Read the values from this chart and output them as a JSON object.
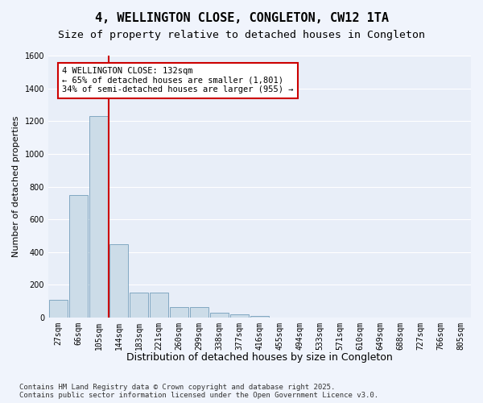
{
  "title": "4, WELLINGTON CLOSE, CONGLETON, CW12 1TA",
  "subtitle": "Size of property relative to detached houses in Congleton",
  "xlabel": "Distribution of detached houses by size in Congleton",
  "ylabel": "Number of detached properties",
  "bins": [
    "27sqm",
    "66sqm",
    "105sqm",
    "144sqm",
    "183sqm",
    "221sqm",
    "260sqm",
    "299sqm",
    "338sqm",
    "377sqm",
    "416sqm",
    "455sqm",
    "494sqm",
    "533sqm",
    "571sqm",
    "610sqm",
    "649sqm",
    "688sqm",
    "727sqm",
    "766sqm",
    "805sqm"
  ],
  "bar_heights": [
    110,
    750,
    1230,
    450,
    155,
    155,
    65,
    65,
    30,
    20,
    10,
    0,
    0,
    0,
    0,
    0,
    0,
    0,
    0,
    0,
    0
  ],
  "bar_color": "#ccdce8",
  "bar_edge_color": "#6090b0",
  "vline_color": "#cc0000",
  "ylim": [
    0,
    1600
  ],
  "yticks": [
    0,
    200,
    400,
    600,
    800,
    1000,
    1200,
    1400,
    1600
  ],
  "annotation_text": "4 WELLINGTON CLOSE: 132sqm\n← 65% of detached houses are smaller (1,801)\n34% of semi-detached houses are larger (955) →",
  "annotation_box_color": "#ffffff",
  "annotation_box_edge_color": "#cc0000",
  "bg_color": "#e8eef8",
  "fig_bg_color": "#f0f4fc",
  "footer": "Contains HM Land Registry data © Crown copyright and database right 2025.\nContains public sector information licensed under the Open Government Licence v3.0.",
  "title_fontsize": 11,
  "subtitle_fontsize": 9.5,
  "xlabel_fontsize": 9,
  "ylabel_fontsize": 8,
  "tick_fontsize": 7,
  "annotation_fontsize": 7.5,
  "footer_fontsize": 6.5,
  "vline_x_index": 2.5
}
